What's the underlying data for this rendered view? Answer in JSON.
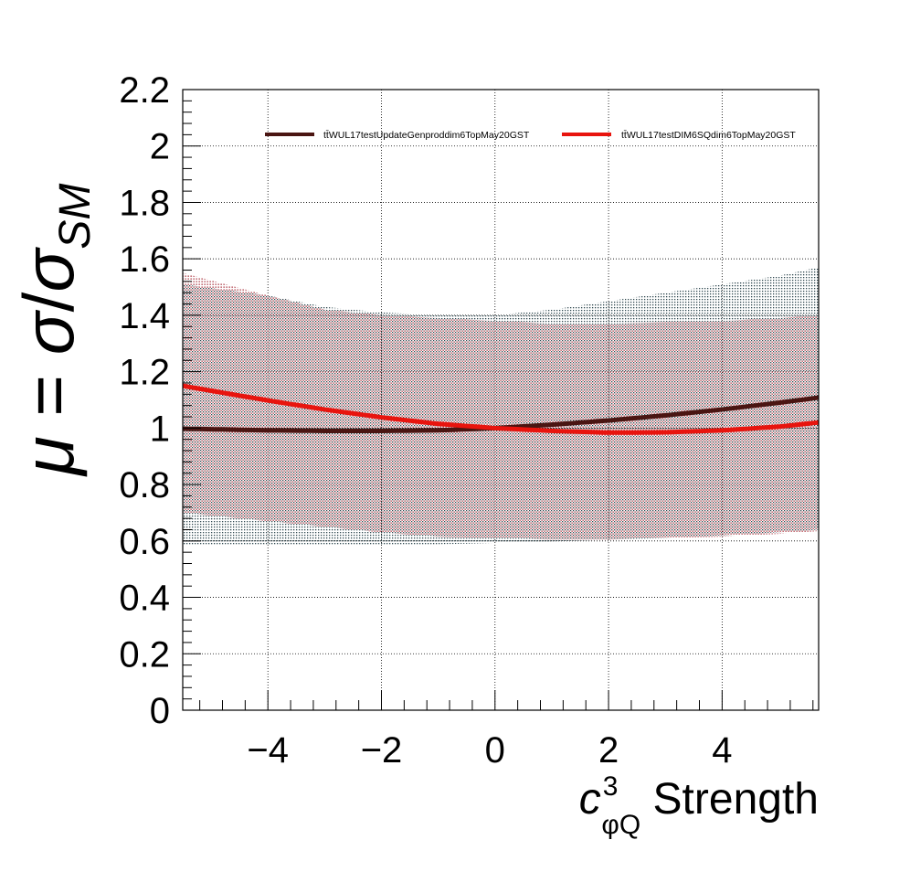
{
  "chart_data": {
    "type": "line",
    "xlabel": {
      "symbol": "c",
      "superscript": "3",
      "subscript": "φQ",
      "text": " Strength"
    },
    "ylabel": {
      "mu": "μ",
      "eq": " = ",
      "sigma": "σ",
      "slash": "/",
      "sigma2": "σ",
      "sub": "SM"
    },
    "xlim": [
      -5.5,
      5.7
    ],
    "ylim": [
      0,
      2.2
    ],
    "x_ticks": [
      -4,
      -2,
      0,
      2,
      4
    ],
    "x_tick_labels": [
      "−4",
      "−2",
      "0",
      "2",
      "4"
    ],
    "y_ticks": [
      0,
      0.2,
      0.4,
      0.6,
      0.8,
      1,
      1.2,
      1.4,
      1.6,
      1.8,
      2,
      2.2
    ],
    "y_tick_labels": [
      "0",
      "0.2",
      "0.4",
      "0.6",
      "0.8",
      "1",
      "1.2",
      "1.4",
      "1.6",
      "1.8",
      "2",
      "2.2"
    ],
    "grid": true,
    "legend_position": "top",
    "series": [
      {
        "name": "tt̄WUL17testUpdateGenproddim6TopMay20GST",
        "color": "#4a1512",
        "band_color": "#16323a",
        "x": [
          -5.5,
          -4,
          -3,
          -2,
          -1,
          0,
          1,
          2,
          3,
          4,
          5,
          5.7
        ],
        "y": [
          0.998,
          0.992,
          0.99,
          0.99,
          0.992,
          1.0,
          1.012,
          1.027,
          1.045,
          1.066,
          1.09,
          1.108
        ],
        "band_low": [
          0.585,
          0.586,
          0.586,
          0.586,
          0.588,
          0.593,
          0.598,
          0.604,
          0.611,
          0.62,
          0.631,
          0.64
        ],
        "band_high": [
          1.51,
          1.47,
          1.43,
          1.41,
          1.4,
          1.4,
          1.42,
          1.45,
          1.48,
          1.51,
          1.54,
          1.57
        ]
      },
      {
        "name": "tt̄WUL17testDIM6SQdim6TopMay20GST",
        "color": "#e8140e",
        "band_color": "#9e1a26",
        "x": [
          -5.5,
          -4,
          -3,
          -2,
          -1,
          0,
          1,
          2,
          3,
          4,
          5,
          5.7
        ],
        "y": [
          1.15,
          1.098,
          1.066,
          1.038,
          1.015,
          1.0,
          0.99,
          0.984,
          0.985,
          0.992,
          1.005,
          1.02
        ],
        "band_low": [
          0.7,
          0.67,
          0.65,
          0.63,
          0.615,
          0.61,
          0.605,
          0.605,
          0.61,
          0.615,
          0.625,
          0.635
        ],
        "band_high": [
          1.55,
          1.47,
          1.42,
          1.4,
          1.39,
          1.38,
          1.37,
          1.37,
          1.375,
          1.38,
          1.39,
          1.4
        ]
      }
    ]
  }
}
